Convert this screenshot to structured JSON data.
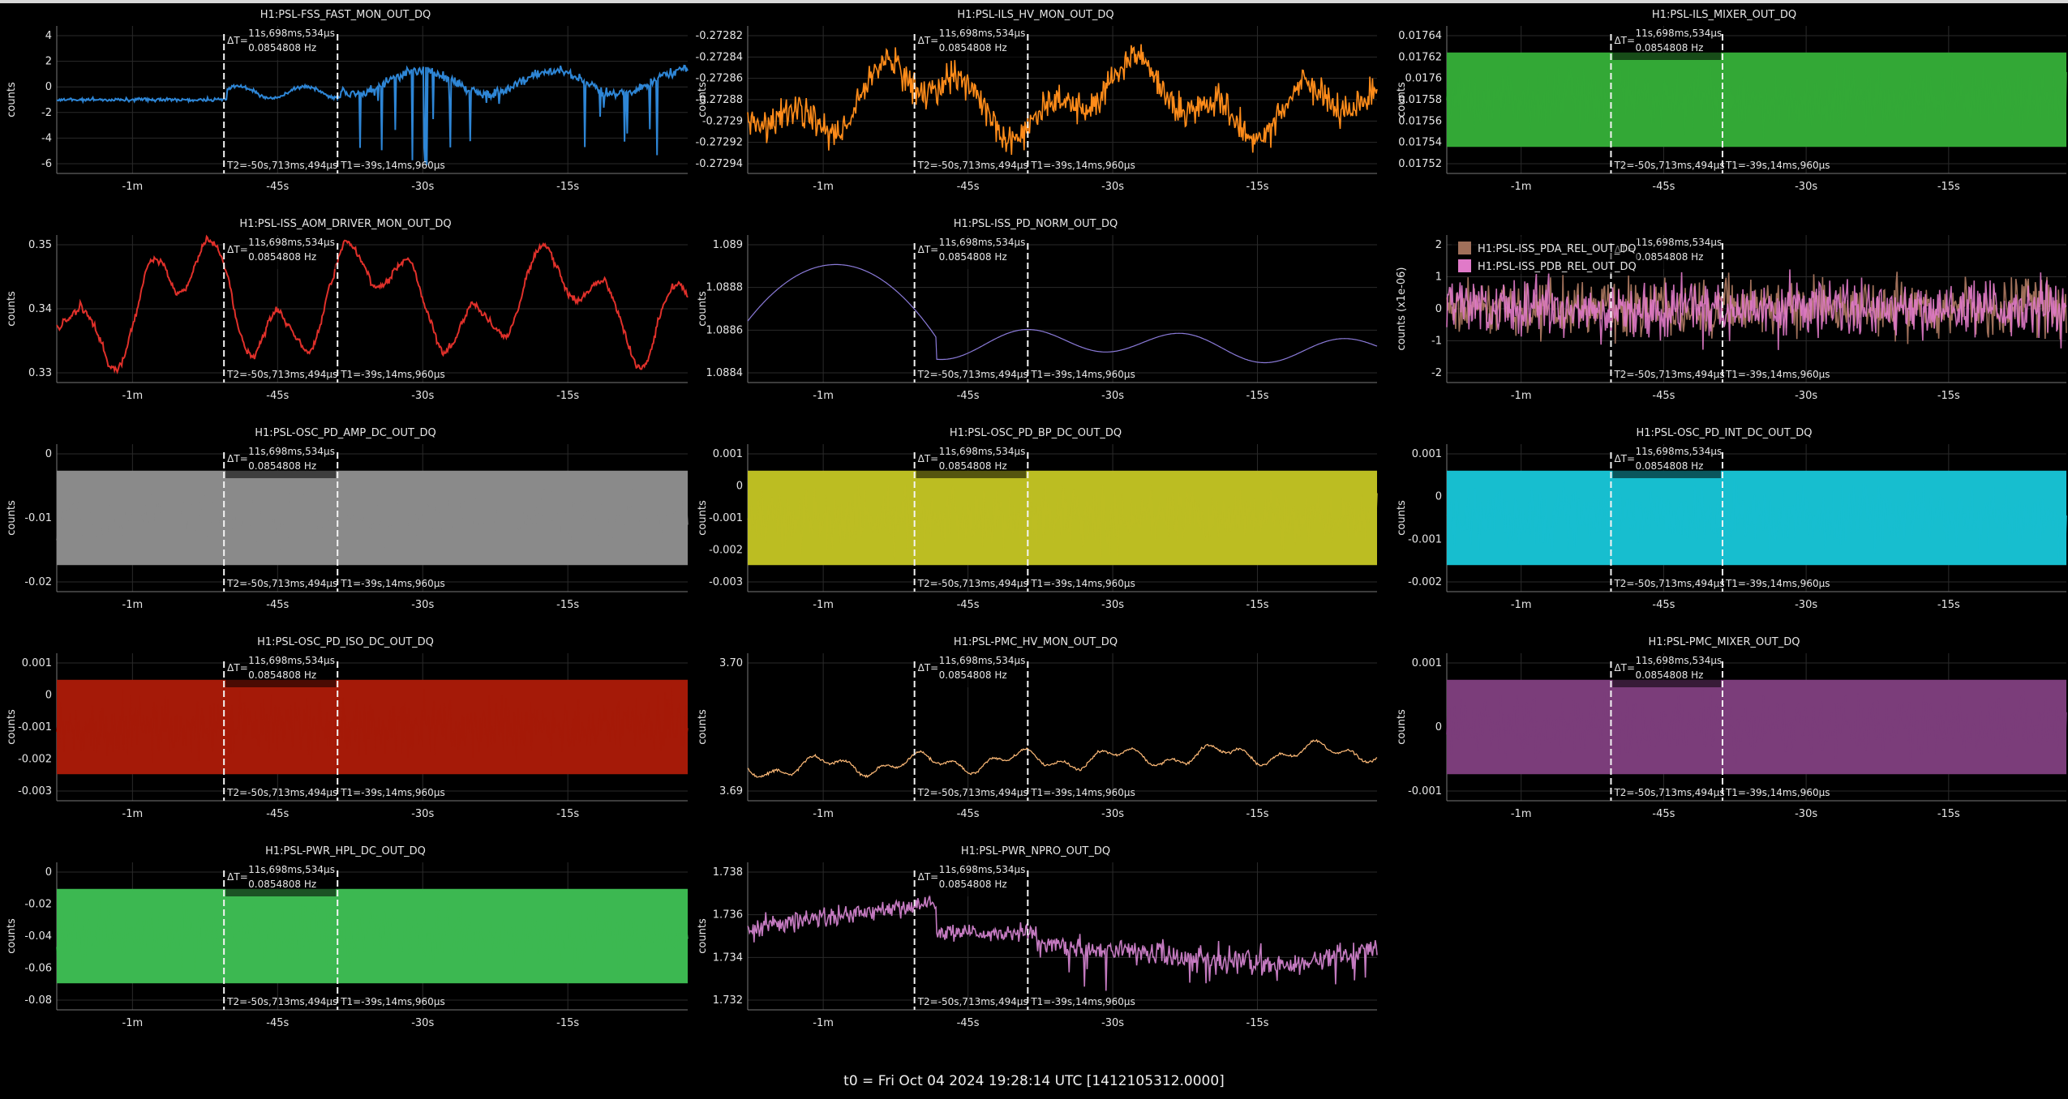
{
  "footer": "t0 = Fri Oct 04 2024 19:28:14 UTC [1412105312.0000]",
  "cursor_labels": {
    "delta_label": "ΔT=",
    "delta_value": "11s,698ms,534µs",
    "freq": "0.0854808 Hz",
    "t2": "T2=-50s,713ms,494µs",
    "t1": "T1=-39s,14ms,960µs"
  },
  "x_ticks": [
    "-1m",
    "-45s",
    "-30s",
    "-15s"
  ],
  "panels": [
    {
      "title": "H1:PSL-FSS_FAST_MON_OUT_DQ",
      "ylabel": "counts",
      "ticks": [
        "4",
        "2",
        "0",
        "-2",
        "-4",
        "-6"
      ],
      "color": "#2e86d6",
      "style": "fss"
    },
    {
      "title": "H1:PSL-ILS_HV_MON_OUT_DQ",
      "ylabel": "counts",
      "ticks": [
        "-0.27282",
        "-0.27284",
        "-0.27286",
        "-0.27288",
        "-0.2729",
        "-0.27292",
        "-0.27294"
      ],
      "color": "#ff8c1a",
      "style": "noisy_wander"
    },
    {
      "title": "H1:PSL-ILS_MIXER_OUT_DQ",
      "ylabel": "counts",
      "ticks": [
        "0.01764",
        "0.01762",
        "0.0176",
        "0.01758",
        "0.01756",
        "0.01754",
        "0.01752"
      ],
      "color": "#33a836",
      "style": "band"
    },
    {
      "title": "H1:PSL-ISS_AOM_DRIVER_MON_OUT_DQ",
      "ylabel": "counts",
      "ticks": [
        "0.35",
        "0.34",
        "0.33"
      ],
      "color": "#e0302a",
      "style": "wander"
    },
    {
      "title": "H1:PSL-ISS_PD_NORM_OUT_DQ",
      "ylabel": "counts",
      "ticks": [
        "1.089",
        "1.0888",
        "1.0886",
        "1.0884"
      ],
      "color": "#8a7ad8",
      "style": "smooth"
    },
    {
      "title": "",
      "ylabel": "counts (x1e-06)",
      "ticks": [
        "2",
        "1",
        "0",
        "-1",
        "-2"
      ],
      "color": "#a0705a",
      "color2": "#e07ac8",
      "style": "pair",
      "legend": [
        "H1:PSL-ISS_PDA_REL_OUT_DQ",
        "H1:PSL-ISS_PDB_REL_OUT_DQ"
      ]
    },
    {
      "title": "H1:PSL-OSC_PD_AMP_DC_OUT_DQ",
      "ylabel": "counts",
      "ticks": [
        "0",
        "-0.01",
        "-0.02"
      ],
      "color": "#8a8a8a",
      "style": "band"
    },
    {
      "title": "H1:PSL-OSC_PD_BP_DC_OUT_DQ",
      "ylabel": "counts",
      "ticks": [
        "0.001",
        "0",
        "-0.001",
        "-0.002",
        "-0.003"
      ],
      "color": "#bcbd22",
      "style": "band"
    },
    {
      "title": "H1:PSL-OSC_PD_INT_DC_OUT_DQ",
      "ylabel": "counts",
      "ticks": [
        "0.001",
        "0",
        "-0.001",
        "-0.002"
      ],
      "color": "#17becf",
      "style": "band"
    },
    {
      "title": "H1:PSL-OSC_PD_ISO_DC_OUT_DQ",
      "ylabel": "counts",
      "ticks": [
        "0.001",
        "0",
        "-0.001",
        "-0.002",
        "-0.003"
      ],
      "color": "#a51a08",
      "style": "band"
    },
    {
      "title": "H1:PSL-PMC_HV_MON_OUT_DQ",
      "ylabel": "counts",
      "ticks": [
        "3.70",
        "3.69"
      ],
      "color": "#ffbb78",
      "style": "thin_wander"
    },
    {
      "title": "H1:PSL-PMC_MIXER_OUT_DQ",
      "ylabel": "counts",
      "ticks": [
        "0.001",
        "0",
        "-0.001"
      ],
      "color": "#7b3d7a",
      "style": "band"
    },
    {
      "title": "H1:PSL-PWR_HPL_DC_OUT_DQ",
      "ylabel": "counts",
      "ticks": [
        "0",
        "-0.02",
        "-0.04",
        "-0.06",
        "-0.08"
      ],
      "color": "#3cb851",
      "style": "band"
    },
    {
      "title": "H1:PSL-PWR_NPRO_OUT_DQ",
      "ylabel": "counts",
      "ticks": [
        "1.738",
        "1.736",
        "1.734",
        "1.732"
      ],
      "color": "#c47ac0",
      "style": "npro"
    }
  ]
}
